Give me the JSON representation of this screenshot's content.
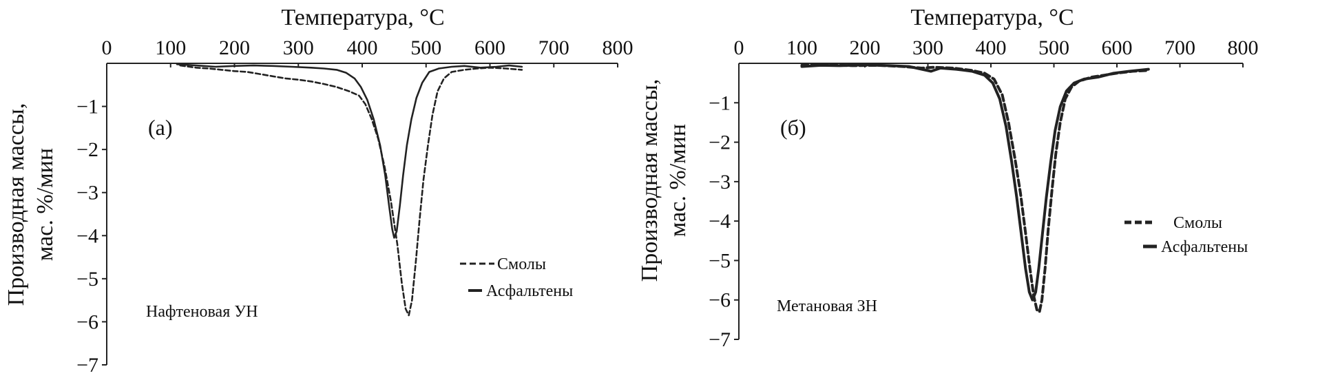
{
  "chart_data": [
    {
      "type": "line",
      "panel_label": "(а)",
      "annotation": "Нафтеновая УН",
      "xlabel": "Температура, °С",
      "ylabel_line1": "Производная массы,",
      "ylabel_line2": "мас. %/мин",
      "xlim": [
        0,
        800
      ],
      "ylim": [
        -7,
        0
      ],
      "xticks": [
        0,
        100,
        200,
        300,
        400,
        500,
        600,
        700,
        800
      ],
      "yticks": [
        -1,
        -2,
        -3,
        -4,
        -5,
        -6,
        -7
      ],
      "x_position": "top",
      "grid": false,
      "legend_position": "right",
      "series": [
        {
          "name": "Смолы",
          "style": "dashed",
          "color": "#222222",
          "points": [
            [
              115,
              -0.05
            ],
            [
              140,
              -0.1
            ],
            [
              160,
              -0.12
            ],
            [
              180,
              -0.15
            ],
            [
              200,
              -0.18
            ],
            [
              220,
              -0.2
            ],
            [
              240,
              -0.25
            ],
            [
              260,
              -0.3
            ],
            [
              280,
              -0.35
            ],
            [
              300,
              -0.38
            ],
            [
              320,
              -0.42
            ],
            [
              340,
              -0.48
            ],
            [
              360,
              -0.55
            ],
            [
              380,
              -0.65
            ],
            [
              395,
              -0.75
            ],
            [
              405,
              -0.95
            ],
            [
              415,
              -1.3
            ],
            [
              425,
              -1.75
            ],
            [
              435,
              -2.4
            ],
            [
              445,
              -3.2
            ],
            [
              455,
              -4.2
            ],
            [
              462,
              -5.1
            ],
            [
              468,
              -5.7
            ],
            [
              473,
              -5.85
            ],
            [
              478,
              -5.5
            ],
            [
              484,
              -4.6
            ],
            [
              490,
              -3.6
            ],
            [
              496,
              -2.7
            ],
            [
              503,
              -1.9
            ],
            [
              510,
              -1.2
            ],
            [
              518,
              -0.65
            ],
            [
              528,
              -0.35
            ],
            [
              540,
              -0.2
            ],
            [
              560,
              -0.15
            ],
            [
              580,
              -0.12
            ],
            [
              600,
              -0.1
            ],
            [
              625,
              -0.12
            ],
            [
              650,
              -0.15
            ]
          ]
        },
        {
          "name": "Асфальтены",
          "style": "solid",
          "color": "#222222",
          "points": [
            [
              110,
              -0.02
            ],
            [
              140,
              -0.05
            ],
            [
              170,
              -0.08
            ],
            [
              200,
              -0.06
            ],
            [
              230,
              -0.05
            ],
            [
              260,
              -0.06
            ],
            [
              290,
              -0.08
            ],
            [
              320,
              -0.1
            ],
            [
              340,
              -0.12
            ],
            [
              360,
              -0.15
            ],
            [
              375,
              -0.22
            ],
            [
              388,
              -0.35
            ],
            [
              398,
              -0.55
            ],
            [
              408,
              -0.85
            ],
            [
              418,
              -1.3
            ],
            [
              428,
              -1.9
            ],
            [
              436,
              -2.6
            ],
            [
              442,
              -3.3
            ],
            [
              447,
              -3.85
            ],
            [
              450,
              -4.05
            ],
            [
              454,
              -3.9
            ],
            [
              459,
              -3.3
            ],
            [
              464,
              -2.6
            ],
            [
              470,
              -1.9
            ],
            [
              477,
              -1.3
            ],
            [
              485,
              -0.8
            ],
            [
              494,
              -0.45
            ],
            [
              505,
              -0.2
            ],
            [
              520,
              -0.12
            ],
            [
              540,
              -0.08
            ],
            [
              560,
              -0.06
            ],
            [
              585,
              -0.1
            ],
            [
              610,
              -0.08
            ],
            [
              630,
              -0.05
            ],
            [
              650,
              -0.08
            ]
          ]
        }
      ]
    },
    {
      "type": "line",
      "panel_label": "(б)",
      "annotation": "Метановая ЗН",
      "xlabel": "Температура, °С",
      "ylabel_line1": "Производная массы,",
      "ylabel_line2": "мас. %/мин",
      "xlim": [
        0,
        800
      ],
      "ylim": [
        -7,
        0
      ],
      "xticks": [
        0,
        100,
        200,
        300,
        400,
        500,
        600,
        700,
        800
      ],
      "yticks": [
        -1,
        -2,
        -3,
        -4,
        -5,
        -6,
        -7
      ],
      "x_position": "top",
      "grid": false,
      "legend_position": "right",
      "series": [
        {
          "name": "Смолы",
          "style": "dashed",
          "color": "#222222",
          "points": [
            [
              100,
              -0.05
            ],
            [
              140,
              -0.04
            ],
            [
              180,
              -0.06
            ],
            [
              220,
              -0.05
            ],
            [
              260,
              -0.08
            ],
            [
              290,
              -0.12
            ],
            [
              310,
              -0.1
            ],
            [
              340,
              -0.12
            ],
            [
              370,
              -0.18
            ],
            [
              390,
              -0.25
            ],
            [
              405,
              -0.4
            ],
            [
              418,
              -0.8
            ],
            [
              428,
              -1.5
            ],
            [
              438,
              -2.4
            ],
            [
              447,
              -3.3
            ],
            [
              455,
              -4.3
            ],
            [
              462,
              -5.2
            ],
            [
              468,
              -5.9
            ],
            [
              473,
              -6.25
            ],
            [
              477,
              -6.3
            ],
            [
              481,
              -6.0
            ],
            [
              486,
              -5.2
            ],
            [
              491,
              -4.2
            ],
            [
              497,
              -3.2
            ],
            [
              503,
              -2.3
            ],
            [
              510,
              -1.5
            ],
            [
              518,
              -0.9
            ],
            [
              528,
              -0.6
            ],
            [
              540,
              -0.45
            ],
            [
              560,
              -0.35
            ],
            [
              580,
              -0.3
            ],
            [
              600,
              -0.25
            ],
            [
              625,
              -0.2
            ],
            [
              650,
              -0.18
            ]
          ]
        },
        {
          "name": "Асфальтены",
          "style": "solid",
          "color": "#222222",
          "points": [
            [
              100,
              -0.08
            ],
            [
              130,
              -0.05
            ],
            [
              160,
              -0.06
            ],
            [
              200,
              -0.04
            ],
            [
              240,
              -0.06
            ],
            [
              270,
              -0.08
            ],
            [
              290,
              -0.15
            ],
            [
              305,
              -0.2
            ],
            [
              320,
              -0.12
            ],
            [
              345,
              -0.15
            ],
            [
              370,
              -0.2
            ],
            [
              390,
              -0.3
            ],
            [
              403,
              -0.5
            ],
            [
              414,
              -0.9
            ],
            [
              424,
              -1.6
            ],
            [
              433,
              -2.5
            ],
            [
              441,
              -3.4
            ],
            [
              448,
              -4.3
            ],
            [
              455,
              -5.2
            ],
            [
              461,
              -5.8
            ],
            [
              466,
              -6.0
            ],
            [
              471,
              -5.8
            ],
            [
              476,
              -5.2
            ],
            [
              482,
              -4.3
            ],
            [
              488,
              -3.4
            ],
            [
              495,
              -2.5
            ],
            [
              502,
              -1.7
            ],
            [
              510,
              -1.1
            ],
            [
              520,
              -0.7
            ],
            [
              532,
              -0.5
            ],
            [
              548,
              -0.4
            ],
            [
              570,
              -0.35
            ],
            [
              595,
              -0.25
            ],
            [
              620,
              -0.2
            ],
            [
              650,
              -0.15
            ]
          ]
        }
      ]
    }
  ]
}
